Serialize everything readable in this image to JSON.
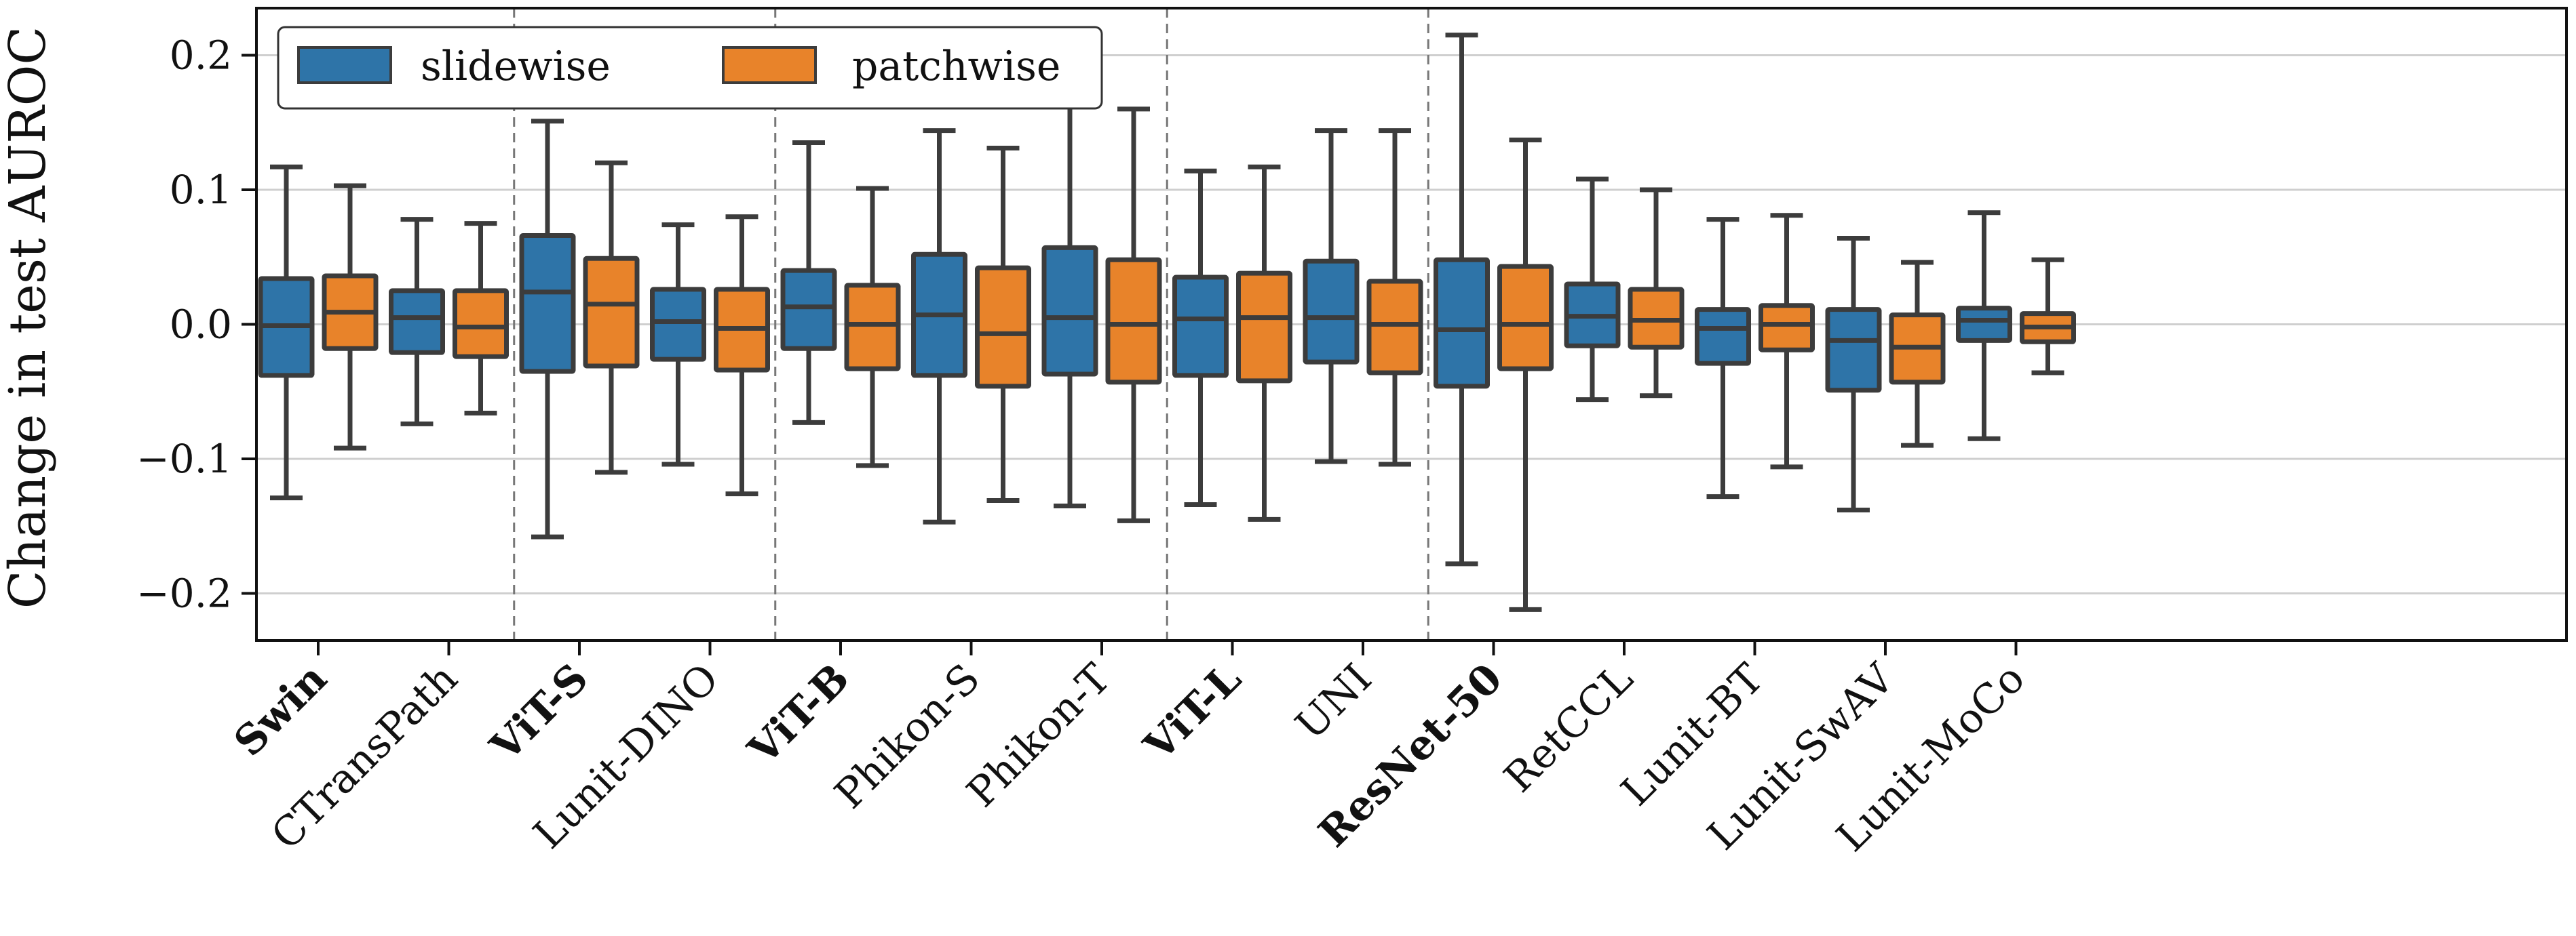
{
  "chart_data": {
    "type": "box",
    "ylabel": "Change in test AUROC",
    "ylim": [
      -0.235,
      0.235
    ],
    "yticks": [
      -0.2,
      -0.1,
      0.0,
      0.1,
      0.2
    ],
    "ytick_labels": [
      "−0.2",
      "−0.1",
      "0.0",
      "0.1",
      "0.2"
    ],
    "grid": "horizontal",
    "legend_position": "top-left",
    "series": [
      {
        "name": "slidewise",
        "color": "#2e74a8"
      },
      {
        "name": "patchwise",
        "color": "#e8832a"
      }
    ],
    "groups": [
      {
        "categories": [
          0,
          1
        ]
      },
      {
        "categories": [
          2,
          3
        ]
      },
      {
        "categories": [
          4,
          5,
          6
        ]
      },
      {
        "categories": [
          7,
          8
        ]
      },
      {
        "categories": [
          9,
          10,
          11,
          12,
          13
        ]
      }
    ],
    "categories": [
      {
        "label": "Swin",
        "bold": true,
        "slidewise": {
          "whislo": -0.129,
          "q1": -0.038,
          "med": -0.001,
          "q3": 0.034,
          "whishi": 0.117
        },
        "patchwise": {
          "whislo": -0.092,
          "q1": -0.018,
          "med": 0.009,
          "q3": 0.036,
          "whishi": 0.103
        }
      },
      {
        "label": "CTransPath",
        "bold": false,
        "slidewise": {
          "whislo": -0.074,
          "q1": -0.021,
          "med": 0.005,
          "q3": 0.025,
          "whishi": 0.078
        },
        "patchwise": {
          "whislo": -0.066,
          "q1": -0.024,
          "med": -0.002,
          "q3": 0.025,
          "whishi": 0.075
        }
      },
      {
        "label": "ViT-S",
        "bold": true,
        "slidewise": {
          "whislo": -0.158,
          "q1": -0.035,
          "med": 0.024,
          "q3": 0.066,
          "whishi": 0.151
        },
        "patchwise": {
          "whislo": -0.11,
          "q1": -0.031,
          "med": 0.015,
          "q3": 0.049,
          "whishi": 0.12
        }
      },
      {
        "label": "Lunit-DINO",
        "bold": false,
        "slidewise": {
          "whislo": -0.104,
          "q1": -0.026,
          "med": 0.002,
          "q3": 0.026,
          "whishi": 0.074
        },
        "patchwise": {
          "whislo": -0.126,
          "q1": -0.034,
          "med": -0.003,
          "q3": 0.026,
          "whishi": 0.08
        }
      },
      {
        "label": "ViT-B",
        "bold": true,
        "slidewise": {
          "whislo": -0.073,
          "q1": -0.018,
          "med": 0.013,
          "q3": 0.04,
          "whishi": 0.135
        },
        "patchwise": {
          "whislo": -0.105,
          "q1": -0.033,
          "med": 0.0,
          "q3": 0.029,
          "whishi": 0.101
        }
      },
      {
        "label": "Phikon-S",
        "bold": false,
        "slidewise": {
          "whislo": -0.147,
          "q1": -0.038,
          "med": 0.007,
          "q3": 0.052,
          "whishi": 0.144
        },
        "patchwise": {
          "whislo": -0.131,
          "q1": -0.046,
          "med": -0.007,
          "q3": 0.042,
          "whishi": 0.131
        }
      },
      {
        "label": "Phikon-T",
        "bold": false,
        "slidewise": {
          "whislo": -0.135,
          "q1": -0.037,
          "med": 0.005,
          "q3": 0.057,
          "whishi": 0.169
        },
        "patchwise": {
          "whislo": -0.146,
          "q1": -0.043,
          "med": 0.0,
          "q3": 0.048,
          "whishi": 0.16
        }
      },
      {
        "label": "ViT-L",
        "bold": true,
        "slidewise": {
          "whislo": -0.134,
          "q1": -0.038,
          "med": 0.004,
          "q3": 0.035,
          "whishi": 0.114
        },
        "patchwise": {
          "whislo": -0.145,
          "q1": -0.042,
          "med": 0.005,
          "q3": 0.038,
          "whishi": 0.117
        }
      },
      {
        "label": "UNI",
        "bold": false,
        "slidewise": {
          "whislo": -0.102,
          "q1": -0.028,
          "med": 0.005,
          "q3": 0.047,
          "whishi": 0.144
        },
        "patchwise": {
          "whislo": -0.104,
          "q1": -0.036,
          "med": 0.0,
          "q3": 0.032,
          "whishi": 0.144
        }
      },
      {
        "label": "ResNet-50",
        "bold": true,
        "slidewise": {
          "whislo": -0.178,
          "q1": -0.046,
          "med": -0.004,
          "q3": 0.048,
          "whishi": 0.215
        },
        "patchwise": {
          "whislo": -0.212,
          "q1": -0.033,
          "med": 0.0,
          "q3": 0.043,
          "whishi": 0.137
        }
      },
      {
        "label": "RetCCL",
        "bold": false,
        "slidewise": {
          "whislo": -0.056,
          "q1": -0.016,
          "med": 0.006,
          "q3": 0.03,
          "whishi": 0.108
        },
        "patchwise": {
          "whislo": -0.053,
          "q1": -0.017,
          "med": 0.003,
          "q3": 0.026,
          "whishi": 0.1
        }
      },
      {
        "label": "Lunit-BT",
        "bold": false,
        "slidewise": {
          "whislo": -0.128,
          "q1": -0.029,
          "med": -0.003,
          "q3": 0.011,
          "whishi": 0.078
        },
        "patchwise": {
          "whislo": -0.106,
          "q1": -0.019,
          "med": 0.0,
          "q3": 0.014,
          "whishi": 0.081
        }
      },
      {
        "label": "Lunit-SwAV",
        "bold": false,
        "slidewise": {
          "whislo": -0.138,
          "q1": -0.049,
          "med": -0.012,
          "q3": 0.011,
          "whishi": 0.064
        },
        "patchwise": {
          "whislo": -0.09,
          "q1": -0.043,
          "med": -0.017,
          "q3": 0.007,
          "whishi": 0.046
        }
      },
      {
        "label": "Lunit-MoCo",
        "bold": false,
        "slidewise": {
          "whislo": -0.085,
          "q1": -0.012,
          "med": 0.003,
          "q3": 0.012,
          "whishi": 0.083
        },
        "patchwise": {
          "whislo": -0.036,
          "q1": -0.013,
          "med": -0.002,
          "q3": 0.008,
          "whishi": 0.048
        }
      }
    ]
  }
}
